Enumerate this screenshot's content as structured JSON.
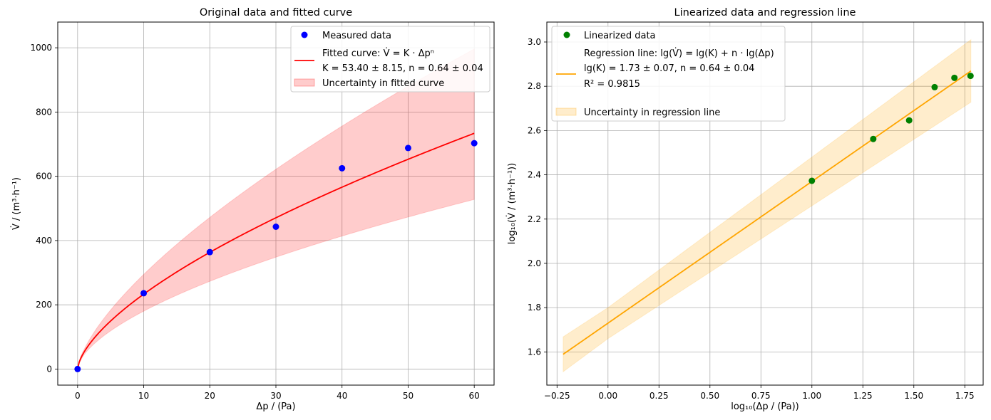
{
  "chart_data": [
    {
      "type": "scatter",
      "title": "Original data and fitted curve",
      "xlabel": "Δp / (Pa)",
      "ylabel": "V̇ / (m³·h⁻¹)",
      "xlim": [
        -3,
        63
      ],
      "ylim": [
        -50,
        1080
      ],
      "xticks": [
        0,
        10,
        20,
        30,
        40,
        50,
        60
      ],
      "yticks": [
        0,
        200,
        400,
        600,
        800,
        1000
      ],
      "grid": true,
      "legend_position": "top-right",
      "colors": {
        "points": "#0000ff",
        "fit": "#ff0000",
        "band": "#ff0000"
      },
      "measured": {
        "name": "Measured data",
        "x": [
          0,
          10,
          20,
          30,
          40,
          50,
          60
        ],
        "y": [
          0,
          236,
          364,
          443,
          625,
          688,
          703
        ]
      },
      "fit": {
        "name_line1": "Fitted curve: V̇ = K · Δpⁿ",
        "name_line2": "K = 53.40 ± 8.15, n = 0.64 ± 0.04",
        "K": 53.4,
        "K_err": 8.15,
        "n": 0.64,
        "n_err": 0.04
      },
      "band": {
        "name": "Uncertainty in fitted curve"
      }
    },
    {
      "type": "scatter",
      "title": "Linearized data and regression line",
      "xlabel": "log₁₀(Δp / (Pa))",
      "ylabel": "log₁₀(V̇ / (m³·h⁻¹))",
      "xlim": [
        -0.3,
        1.84
      ],
      "ylim": [
        1.45,
        3.09
      ],
      "xticks": [
        -0.25,
        0.0,
        0.25,
        0.5,
        0.75,
        1.0,
        1.25,
        1.5,
        1.75
      ],
      "xtick_labels": [
        "−0.25",
        "0.00",
        "0.25",
        "0.50",
        "0.75",
        "1.00",
        "1.25",
        "1.50",
        "1.75"
      ],
      "yticks": [
        1.6,
        1.8,
        2.0,
        2.2,
        2.4,
        2.6,
        2.8,
        3.0
      ],
      "ytick_labels": [
        "1.6",
        "1.8",
        "2.0",
        "2.2",
        "2.4",
        "2.6",
        "2.8",
        "3.0"
      ],
      "grid": true,
      "legend_position": "top-left",
      "colors": {
        "points": "#008000",
        "line": "#ffa500",
        "band": "#ffa500"
      },
      "linearized": {
        "name": "Linearized data",
        "x": [
          1.0,
          1.301,
          1.477,
          1.602,
          1.699,
          1.778
        ],
        "y": [
          2.373,
          2.562,
          2.646,
          2.796,
          2.838,
          2.847
        ]
      },
      "regression": {
        "name_line1": "Regression line: lg(V̇) = lg(K) + n · lg(Δp)",
        "name_line2": "lg(K) = 1.73 ± 0.07, n = 0.64 ± 0.04",
        "name_line3": "R² = 0.9815",
        "intercept": 1.73,
        "intercept_err": 0.07,
        "slope": 0.64,
        "slope_err": 0.04,
        "x_range": [
          -0.22,
          1.78
        ]
      },
      "band": {
        "name": "Uncertainty in regression line"
      }
    }
  ]
}
